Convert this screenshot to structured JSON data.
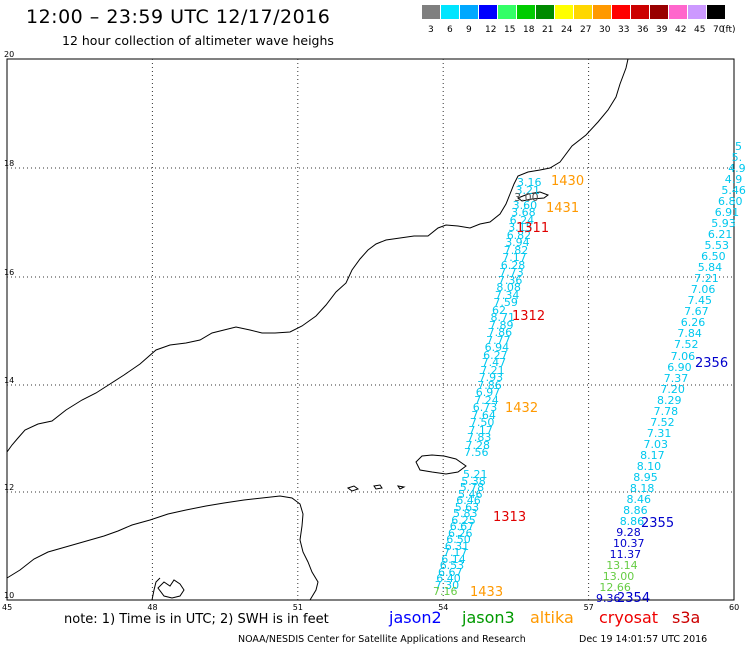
{
  "header": {
    "title": "12:00 – 23:59 UTC 12/17/2016",
    "subtitle": "12 hour collection of altimeter wave heighs"
  },
  "colorbar": {
    "unit_label": "(ft)",
    "bins": [
      {
        "label": "3",
        "color": "#7f7f7f"
      },
      {
        "label": "6",
        "color": "#00e5ff"
      },
      {
        "label": "9",
        "color": "#00a8ff"
      },
      {
        "label": "12",
        "color": "#0000ff"
      },
      {
        "label": "15",
        "color": "#33ff66"
      },
      {
        "label": "18",
        "color": "#00cc00"
      },
      {
        "label": "21",
        "color": "#008a00"
      },
      {
        "label": "24",
        "color": "#ffff00"
      },
      {
        "label": "27",
        "color": "#ffd700"
      },
      {
        "label": "30",
        "color": "#ff9900"
      },
      {
        "label": "33",
        "color": "#ff0000"
      },
      {
        "label": "36",
        "color": "#cc0000"
      },
      {
        "label": "39",
        "color": "#990000"
      },
      {
        "label": "42",
        "color": "#ff66cc"
      },
      {
        "label": "45",
        "color": "#cc99ff"
      },
      {
        "label": "70",
        "color": "#000000"
      }
    ]
  },
  "axes": {
    "x_ticks": [
      "45",
      "48",
      "51",
      "54",
      "57",
      "60"
    ],
    "y_ticks": [
      "20",
      "18",
      "16",
      "14",
      "12",
      "10"
    ]
  },
  "colors": {
    "cyan": "#00c8ee",
    "blue": "#0000cc",
    "green": "#66cc44",
    "orange": "#ff9900",
    "red": "#e00000",
    "gray": "#555555"
  },
  "tracks": {
    "west": [
      [
        "3.16",
        "cyan"
      ],
      [
        "3.21",
        "cyan"
      ],
      [
        "3.00",
        "gray"
      ],
      [
        "3.60",
        "cyan"
      ],
      [
        "3.68",
        "cyan"
      ],
      [
        "6.24",
        "cyan"
      ],
      [
        "3.15",
        "cyan"
      ],
      [
        "6.82",
        "cyan"
      ],
      [
        "3.94",
        "cyan"
      ],
      [
        "7.82",
        "cyan"
      ],
      [
        "7.17",
        "cyan"
      ],
      [
        "6.28",
        "cyan"
      ],
      [
        "7.73",
        "cyan"
      ],
      [
        "7.36",
        "cyan"
      ],
      [
        "8.08",
        "cyan"
      ],
      [
        "7.34",
        "cyan"
      ],
      [
        "7.59",
        "cyan"
      ],
      [
        "62",
        "cyan"
      ],
      [
        "8.71",
        "cyan"
      ],
      [
        "7.89",
        "cyan"
      ],
      [
        "7.86",
        "cyan"
      ],
      [
        "7.77",
        "cyan"
      ],
      [
        "6.94",
        "cyan"
      ],
      [
        "6.27",
        "cyan"
      ],
      [
        "7.47",
        "cyan"
      ],
      [
        "7.21",
        "cyan"
      ],
      [
        "7.93",
        "cyan"
      ],
      [
        "7.86",
        "cyan"
      ],
      [
        "6.97",
        "cyan"
      ],
      [
        "7.24",
        "cyan"
      ],
      [
        "6.73",
        "cyan"
      ],
      [
        "7.64",
        "cyan"
      ],
      [
        "7.50",
        "cyan"
      ],
      [
        "7.17",
        "cyan"
      ],
      [
        "7.83",
        "cyan"
      ],
      [
        "7.28",
        "cyan"
      ],
      [
        "7.56",
        "cyan"
      ]
    ],
    "south": [
      [
        "5.21",
        "cyan"
      ],
      [
        "5.38",
        "cyan"
      ],
      [
        "5.78",
        "cyan"
      ],
      [
        "5.46",
        "cyan"
      ],
      [
        "6.46",
        "cyan"
      ],
      [
        "5.63",
        "cyan"
      ],
      [
        "5.83",
        "cyan"
      ],
      [
        "6.25",
        "cyan"
      ],
      [
        "6.67",
        "cyan"
      ],
      [
        "6.26",
        "cyan"
      ],
      [
        "6.50",
        "cyan"
      ],
      [
        "6.31",
        "cyan"
      ],
      [
        "7.17",
        "cyan"
      ],
      [
        "6.14",
        "cyan"
      ],
      [
        "6.53",
        "cyan"
      ],
      [
        "6.67",
        "cyan"
      ],
      [
        "6.40",
        "cyan"
      ],
      [
        "7.30",
        "cyan"
      ],
      [
        "7.16",
        "green"
      ]
    ],
    "east": [
      [
        "5",
        "cyan"
      ],
      [
        "5.",
        "cyan"
      ],
      [
        "4.9",
        "cyan"
      ],
      [
        "4.9",
        "cyan"
      ],
      [
        "5.46",
        "cyan"
      ],
      [
        "6.80",
        "cyan"
      ],
      [
        "6.91",
        "cyan"
      ],
      [
        "5.93",
        "cyan"
      ],
      [
        "6.21",
        "cyan"
      ],
      [
        "5.53",
        "cyan"
      ],
      [
        "6.50",
        "cyan"
      ],
      [
        "5.84",
        "cyan"
      ],
      [
        "7.21",
        "cyan"
      ],
      [
        "7.06",
        "cyan"
      ],
      [
        "7.45",
        "cyan"
      ],
      [
        "7.67",
        "cyan"
      ],
      [
        "6.26",
        "cyan"
      ],
      [
        "7.84",
        "cyan"
      ],
      [
        "7.52",
        "cyan"
      ],
      [
        "7.06",
        "cyan"
      ],
      [
        "6.90",
        "cyan"
      ],
      [
        "7.37",
        "cyan"
      ],
      [
        "7.20",
        "cyan"
      ],
      [
        "8.29",
        "cyan"
      ],
      [
        "7.78",
        "cyan"
      ],
      [
        "7.52",
        "cyan"
      ],
      [
        "7.31",
        "cyan"
      ],
      [
        "7.03",
        "cyan"
      ],
      [
        "8.17",
        "cyan"
      ],
      [
        "8.10",
        "cyan"
      ],
      [
        "8.95",
        "cyan"
      ],
      [
        "8.18",
        "cyan"
      ],
      [
        "8.46",
        "cyan"
      ],
      [
        "8.86",
        "cyan"
      ],
      [
        "8.86",
        "cyan"
      ],
      [
        "9.28",
        "blue"
      ],
      [
        "10.37",
        "blue"
      ],
      [
        "11.37",
        "blue"
      ],
      [
        "13.14",
        "green"
      ],
      [
        "13.00",
        "green"
      ],
      [
        "12.66",
        "green"
      ],
      [
        "9.36",
        "blue"
      ]
    ]
  },
  "time_labels": [
    {
      "text": "1430",
      "color": "orange"
    },
    {
      "text": "1431",
      "color": "orange"
    },
    {
      "text": "1311",
      "color": "red"
    },
    {
      "text": "1312",
      "color": "red"
    },
    {
      "text": "1432",
      "color": "orange"
    },
    {
      "text": "1313",
      "color": "red"
    },
    {
      "text": "1433",
      "color": "orange"
    },
    {
      "text": "2356",
      "color": "blue"
    },
    {
      "text": "2355",
      "color": "blue"
    },
    {
      "text": "2354",
      "color": "blue"
    }
  ],
  "footer": {
    "note": "note: 1) Time is in UTC; 2) SWH is in feet",
    "legend": [
      {
        "name": "jason2",
        "color": "#0000ff"
      },
      {
        "name": "jason3",
        "color": "#009900"
      },
      {
        "name": "altika",
        "color": "#ff9900"
      },
      {
        "name": "cryosat",
        "color": "#ee0000"
      },
      {
        "name": "s3a",
        "color": "#cc0000"
      }
    ],
    "credit": "NOAA/NESDIS Center for Satellite Applications and Research",
    "date": "Dec 19 14:01:57 UTC 2016"
  }
}
